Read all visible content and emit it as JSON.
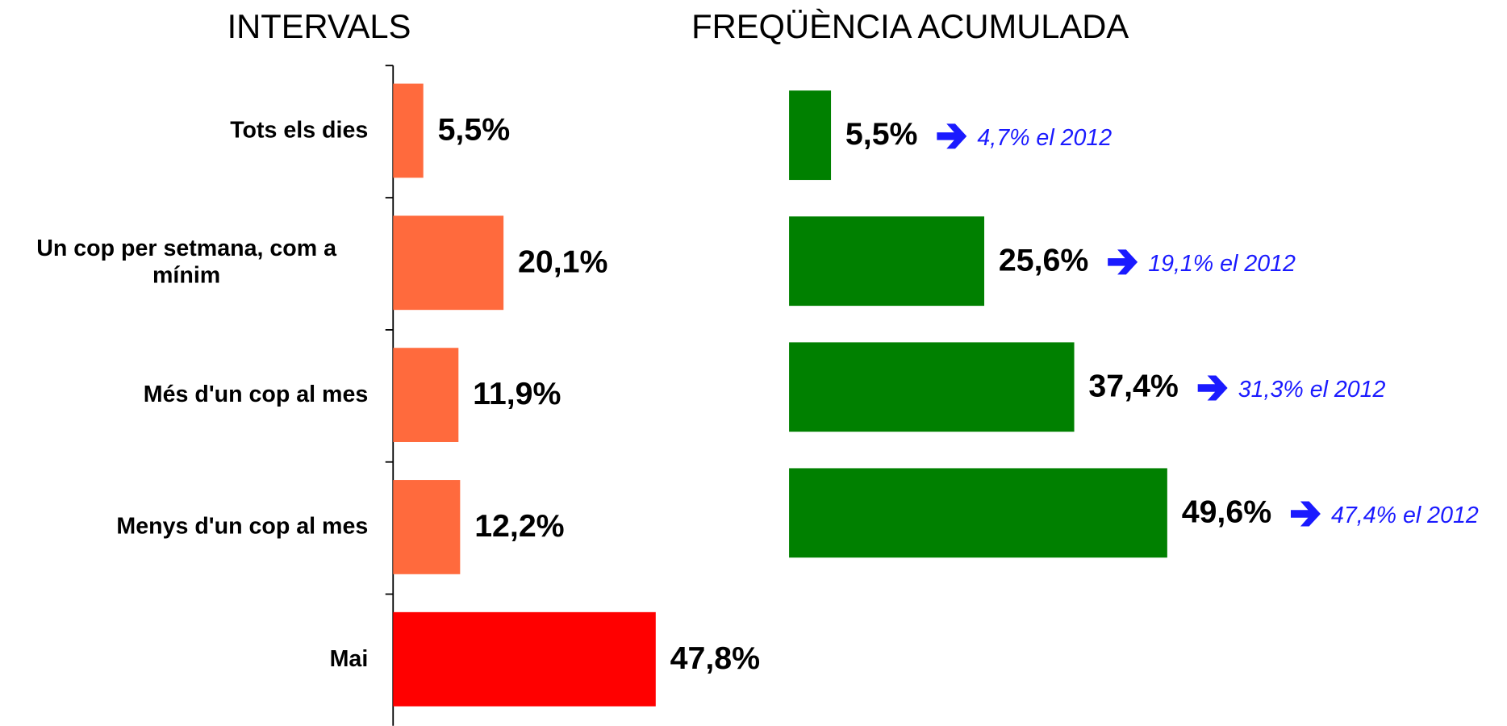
{
  "chart_data": [
    {
      "type": "bar",
      "orientation": "horizontal",
      "title": "INTERVALS",
      "categories": [
        "Tots els dies",
        "Un cop per setmana, com a mínim",
        "Més d'un cop al mes",
        "Menys d'un cop al mes",
        "Mai"
      ],
      "values": [
        5.5,
        20.1,
        11.9,
        12.2,
        47.8
      ],
      "value_labels": [
        "5,5%",
        "20,1%",
        "11,9%",
        "12,2%",
        "47,8%"
      ],
      "colors": [
        "#ff6a3d",
        "#ff6a3d",
        "#ff6a3d",
        "#ff6a3d",
        "#ff0000"
      ],
      "xlim": [
        0,
        60
      ]
    },
    {
      "type": "bar",
      "orientation": "horizontal",
      "title": "FREQÜÈNCIA ACUMULADA",
      "values": [
        5.5,
        25.6,
        37.4,
        49.6
      ],
      "value_labels": [
        "5,5%",
        "25,6%",
        "37,4%",
        "49,6%"
      ],
      "annotations": [
        "4,7% el 2012",
        "19,1% el 2012",
        "31,3% el 2012",
        "47,4% el 2012"
      ],
      "color": "#008000",
      "annotation_color": "#1a1aff",
      "xlim": [
        0,
        60
      ]
    }
  ]
}
